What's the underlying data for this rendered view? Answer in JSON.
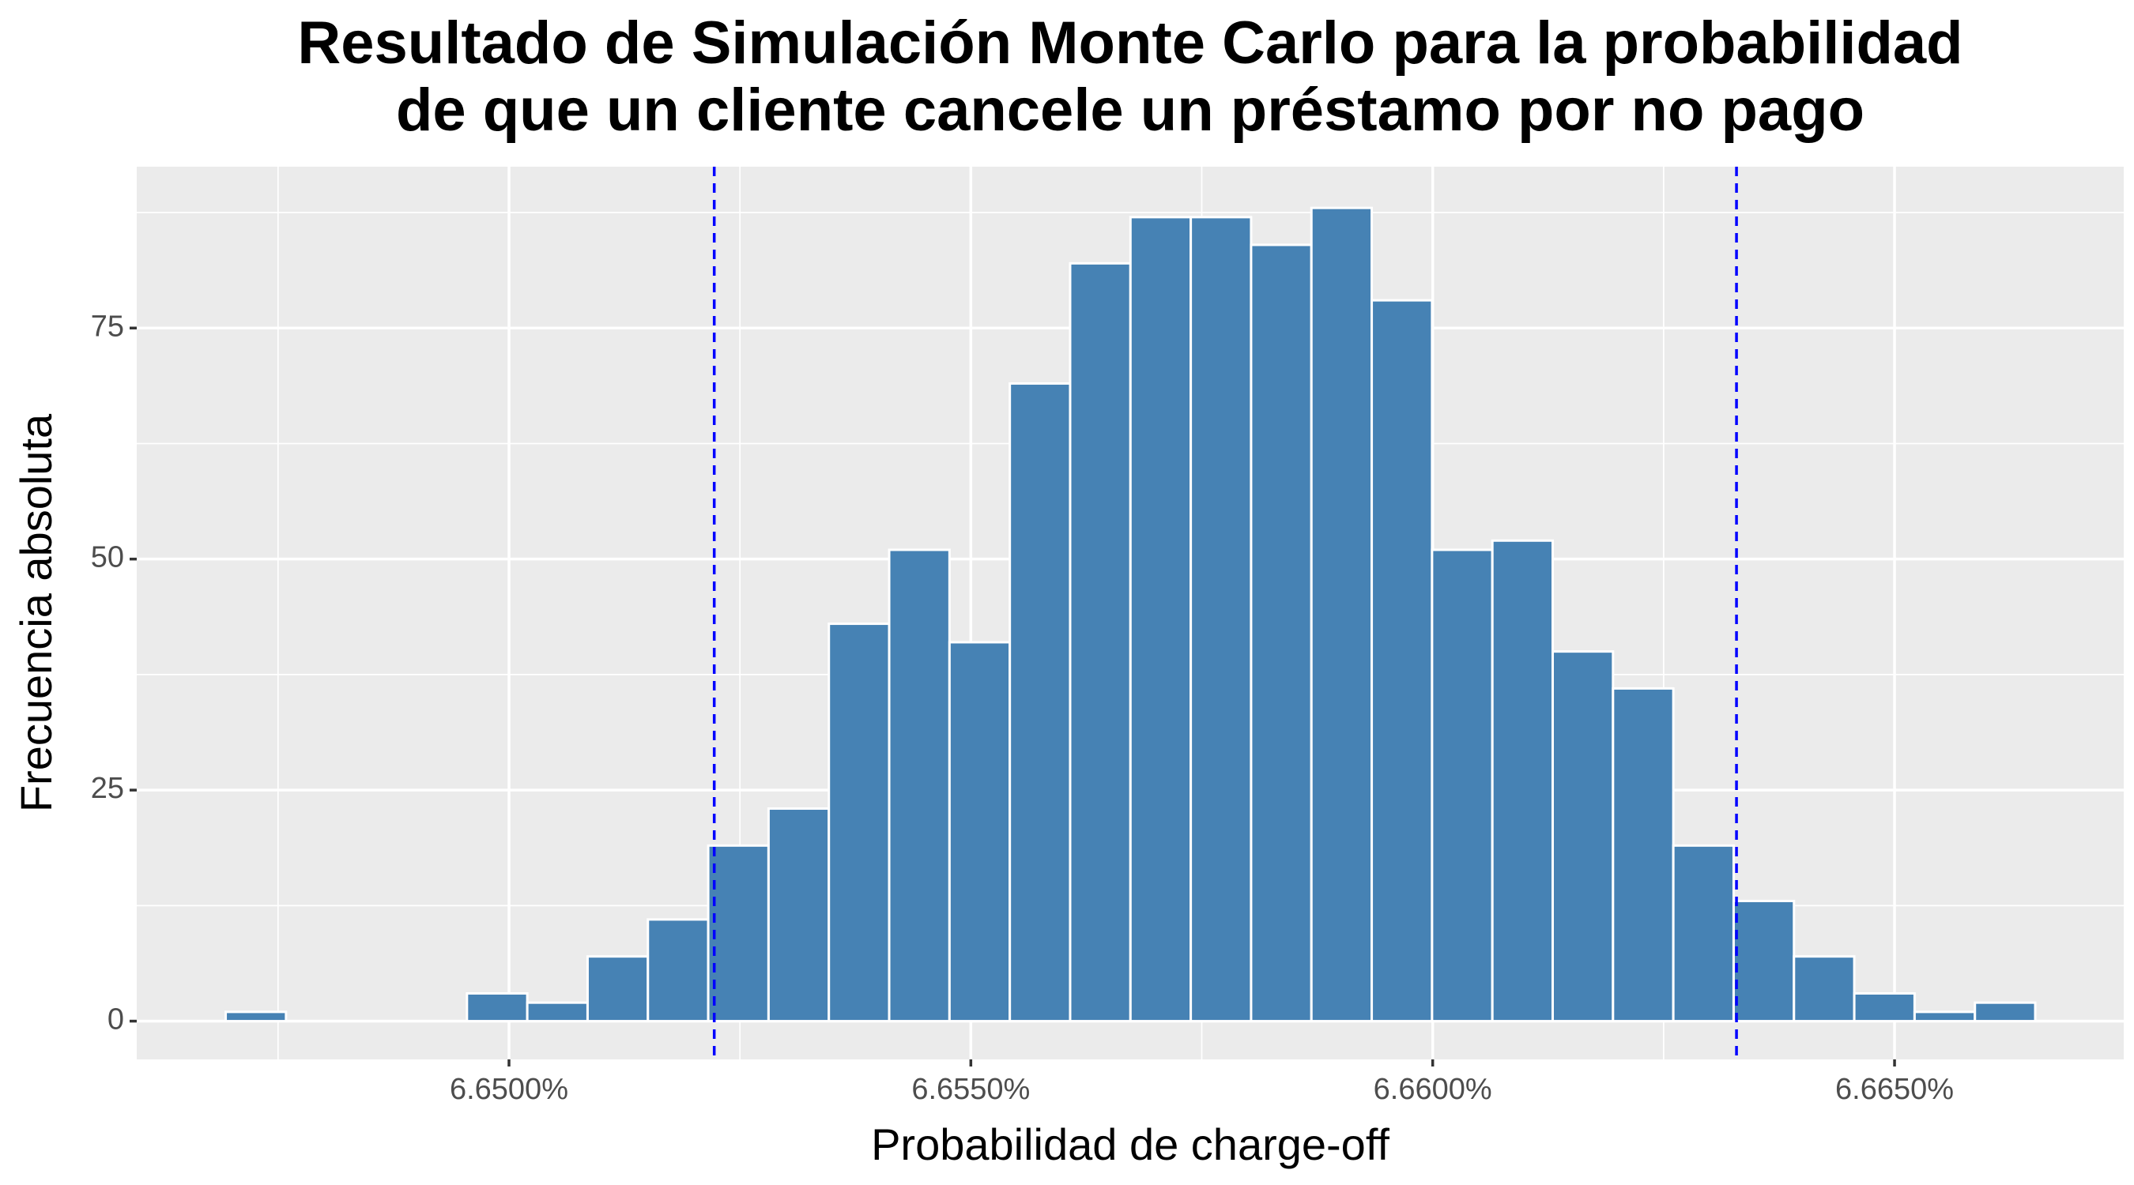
{
  "chart_data": {
    "type": "histogram",
    "title": [
      "Resultado de Simulación Monte Carlo para la probabilidad",
      "de que un cliente cancele un préstamo por no pago"
    ],
    "x_label": "Probabilidad de charge-off",
    "y_label": "Frecuencia absoluta",
    "bins": [
      6.646933,
      6.647586,
      6.648239,
      6.648892,
      6.649545,
      6.650198,
      6.650851,
      6.651504,
      6.652157,
      6.65281,
      6.653463,
      6.654116,
      6.654769,
      6.655422,
      6.656075,
      6.656728,
      6.657381,
      6.658034,
      6.658687,
      6.65934,
      6.659993,
      6.660646,
      6.661299,
      6.661952,
      6.662605,
      6.663258,
      6.663911,
      6.664564,
      6.665217,
      6.66587,
      6.666523
    ],
    "values": [
      1,
      0,
      0,
      0,
      3,
      2,
      7,
      11,
      19,
      23,
      43,
      51,
      41,
      69,
      82,
      87,
      87,
      84,
      88,
      78,
      51,
      52,
      40,
      36,
      19,
      13,
      7,
      3,
      1,
      2
    ],
    "color": "#4682b4",
    "edge_color": "#ffffff",
    "vlines": [
      6.652222,
      6.663289
    ],
    "vline_color": "#0000ff",
    "xlim": [
      6.64597,
      6.667481
    ],
    "ylim": [
      -4.14,
      92.46
    ],
    "xticks": [
      {
        "value": 6.65,
        "label": "6.6500%"
      },
      {
        "value": 6.655,
        "label": "6.6550%"
      },
      {
        "value": 6.66,
        "label": "6.6600%"
      },
      {
        "value": 6.665,
        "label": "6.6650%"
      }
    ],
    "yticks": [
      0,
      25,
      50,
      75
    ],
    "grid": true
  }
}
